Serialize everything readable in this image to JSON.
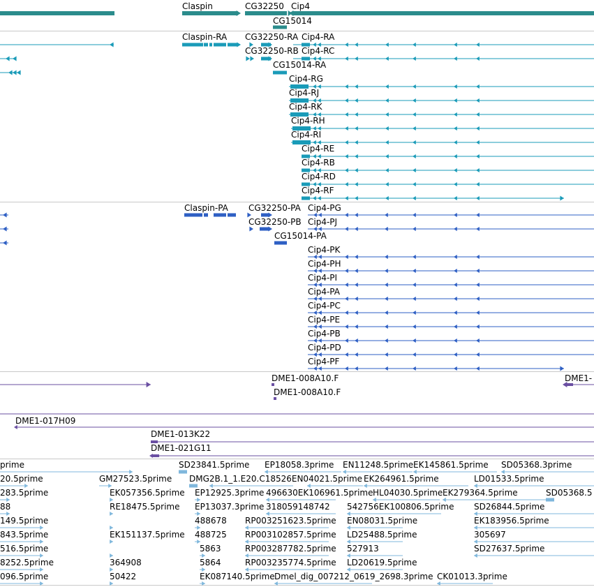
{
  "colors": {
    "gene": "#2b8c8c",
    "transcript": "#1a9bb8",
    "protein": "#2e5fc4",
    "clone": "#6a4fa2",
    "est": "#7fb7dc",
    "separator": "#c8c8c8"
  },
  "tracks": {
    "genes": {
      "labels": [
        {
          "name": "gene-label-claspin",
          "text": "Claspin"
        },
        {
          "name": "gene-label-cg32250",
          "text": "CG32250"
        },
        {
          "name": "gene-label-cip4",
          "text": "Cip4"
        },
        {
          "name": "gene-label-cg15014",
          "text": "CG15014"
        }
      ]
    },
    "transcripts": {
      "labels": [
        {
          "name": "transcript-label",
          "text": "Claspin-RA"
        },
        {
          "name": "transcript-label",
          "text": "CG32250-RA"
        },
        {
          "name": "transcript-label",
          "text": "Cip4-RA"
        },
        {
          "name": "transcript-label",
          "text": "CG32250-RB"
        },
        {
          "name": "transcript-label",
          "text": "Cip4-RC"
        },
        {
          "name": "transcript-label",
          "text": "CG15014-RA"
        },
        {
          "name": "transcript-label",
          "text": "Cip4-RG"
        },
        {
          "name": "transcript-label",
          "text": "Cip4-RJ"
        },
        {
          "name": "transcript-label",
          "text": "Cip4-RK"
        },
        {
          "name": "transcript-label",
          "text": "Cip4-RH"
        },
        {
          "name": "transcript-label",
          "text": "Cip4-RI"
        },
        {
          "name": "transcript-label",
          "text": "Cip4-RE"
        },
        {
          "name": "transcript-label",
          "text": "Cip4-RB"
        },
        {
          "name": "transcript-label",
          "text": "Cip4-RD"
        },
        {
          "name": "transcript-label",
          "text": "Cip4-RF"
        }
      ]
    },
    "proteins": {
      "labels": [
        {
          "name": "protein-label",
          "text": "Claspin-PA"
        },
        {
          "name": "protein-label",
          "text": "CG32250-PA"
        },
        {
          "name": "protein-label",
          "text": "Cip4-PG"
        },
        {
          "name": "protein-label",
          "text": "CG32250-PB"
        },
        {
          "name": "protein-label",
          "text": "Cip4-PJ"
        },
        {
          "name": "protein-label",
          "text": "CG15014-PA"
        },
        {
          "name": "protein-label",
          "text": "Cip4-PK"
        },
        {
          "name": "protein-label",
          "text": "Cip4-PH"
        },
        {
          "name": "protein-label",
          "text": "Cip4-PI"
        },
        {
          "name": "protein-label",
          "text": "Cip4-PA"
        },
        {
          "name": "protein-label",
          "text": "Cip4-PC"
        },
        {
          "name": "protein-label",
          "text": "Cip4-PE"
        },
        {
          "name": "protein-label",
          "text": "Cip4-PB"
        },
        {
          "name": "protein-label",
          "text": "Cip4-PD"
        },
        {
          "name": "protein-label",
          "text": "Cip4-PF"
        }
      ]
    },
    "clones": {
      "labels": [
        {
          "name": "clone-label",
          "text": "DME1-008A10.F"
        },
        {
          "name": "clone-label",
          "text": "DME1-"
        },
        {
          "name": "clone-label",
          "text": "DME1-008A10.F"
        },
        {
          "name": "clone-label",
          "text": "DME1-017H09"
        },
        {
          "name": "clone-label",
          "text": "DME1-013K22"
        },
        {
          "name": "clone-label",
          "text": "DME1-021G11"
        }
      ]
    },
    "ests": {
      "labels": [
        {
          "name": "est-label",
          "text": "prime"
        },
        {
          "name": "est-label",
          "text": "SD23841.5prime"
        },
        {
          "name": "est-label",
          "text": "EP18058.3prime"
        },
        {
          "name": "est-label",
          "text": "EN11248.5prime"
        },
        {
          "name": "est-label",
          "text": "EK145861.5prime"
        },
        {
          "name": "est-label",
          "text": "SD05368.3prime"
        },
        {
          "name": "est-label",
          "text": "20.5prime"
        },
        {
          "name": "est-label",
          "text": "GM27523.5prime"
        },
        {
          "name": "est-label",
          "text": "DMG2B.1_1.E20.C18526EN04021.5prime"
        },
        {
          "name": "est-label",
          "text": "EK264961.5prime"
        },
        {
          "name": "est-label",
          "text": "LD01533.5prime"
        },
        {
          "name": "est-label",
          "text": "283.5prime"
        },
        {
          "name": "est-label",
          "text": "EK057356.5prime"
        },
        {
          "name": "est-label",
          "text": "EP12925.3prime"
        },
        {
          "name": "est-label",
          "text": "496630EK106961.5prime"
        },
        {
          "name": "est-label",
          "text": "HL04030.5prime"
        },
        {
          "name": "est-label",
          "text": "EK279364.5prime"
        },
        {
          "name": "est-label",
          "text": "SD05368.5"
        },
        {
          "name": "est-label",
          "text": "88"
        },
        {
          "name": "est-label",
          "text": "RE18475.5prime"
        },
        {
          "name": "est-label",
          "text": "EP13037.3prime"
        },
        {
          "name": "est-label",
          "text": "318059148742"
        },
        {
          "name": "est-label",
          "text": "542756EK100806.5prime"
        },
        {
          "name": "est-label",
          "text": "SD26844.5prime"
        },
        {
          "name": "est-label",
          "text": "149.5prime"
        },
        {
          "name": "est-label",
          "text": "488678"
        },
        {
          "name": "est-label",
          "text": "RP003251623.5prime"
        },
        {
          "name": "est-label",
          "text": "EN08031.5prime"
        },
        {
          "name": "est-label",
          "text": "EK183956.5prime"
        },
        {
          "name": "est-label",
          "text": "843.5prime"
        },
        {
          "name": "est-label",
          "text": "EK151137.5prime"
        },
        {
          "name": "est-label",
          "text": "488725"
        },
        {
          "name": "est-label",
          "text": "RP003102857.5prime"
        },
        {
          "name": "est-label",
          "text": "LD25488.5prime"
        },
        {
          "name": "est-label",
          "text": "305697"
        },
        {
          "name": "est-label",
          "text": "516.5prime"
        },
        {
          "name": "est-label",
          "text": "5863"
        },
        {
          "name": "est-label",
          "text": "RP003287782.5prime"
        },
        {
          "name": "est-label",
          "text": "527913"
        },
        {
          "name": "est-label",
          "text": "SD27637.5prime"
        },
        {
          "name": "est-label",
          "text": "8252.5prime"
        },
        {
          "name": "est-label",
          "text": "364908"
        },
        {
          "name": "est-label",
          "text": "5864"
        },
        {
          "name": "est-label",
          "text": "RP003235774.5prime"
        },
        {
          "name": "est-label",
          "text": "LD20619.5prime"
        },
        {
          "name": "est-label",
          "text": "096.5prime"
        },
        {
          "name": "est-label",
          "text": "50422"
        },
        {
          "name": "est-label",
          "text": "EK087140.5prime"
        },
        {
          "name": "est-label",
          "text": "Dmel_dig_007212_0619_2698.3prime"
        },
        {
          "name": "est-label",
          "text": "CK01013.3prime"
        }
      ]
    }
  }
}
